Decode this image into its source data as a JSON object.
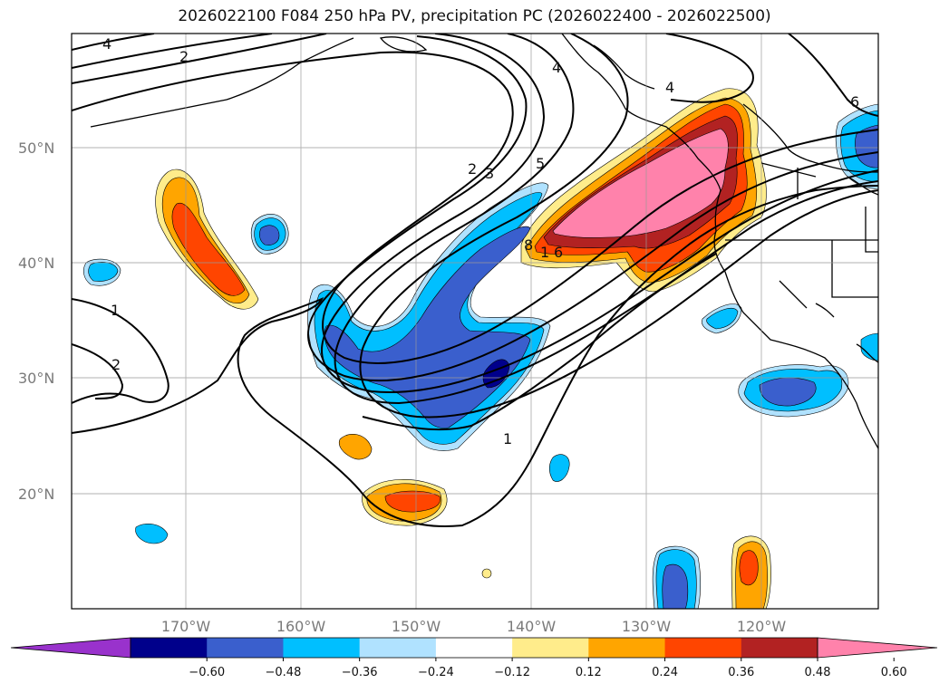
{
  "title": "2026022100 F084 250 hPa PV, precipitation PC (2026022400 - 2026022500)",
  "lat_labels": [
    "50°N",
    "40°N",
    "30°N",
    "20°N"
  ],
  "lon_labels": [
    "170°W",
    "160°W",
    "150°W",
    "140°W",
    "130°W",
    "120°W"
  ],
  "colorbar": {
    "colors": [
      "#9932cc",
      "#00008b",
      "#3a5fcd",
      "#00bfff",
      "#b0e2ff",
      "#ffffff",
      "#ffec8b",
      "#ffa500",
      "#ff4500",
      "#b22222",
      "#ff82ab"
    ],
    "tick_labels": [
      "-0.60",
      "-0.48",
      "-0.36",
      "-0.24",
      "-0.12",
      "0.12",
      "0.24",
      "0.36",
      "0.48",
      "0.60"
    ]
  },
  "contour_labels": [
    "4",
    "2",
    "2",
    "3",
    "5",
    "4",
    "4",
    "6",
    "1",
    "2",
    "1",
    "8",
    "1",
    "6"
  ]
}
